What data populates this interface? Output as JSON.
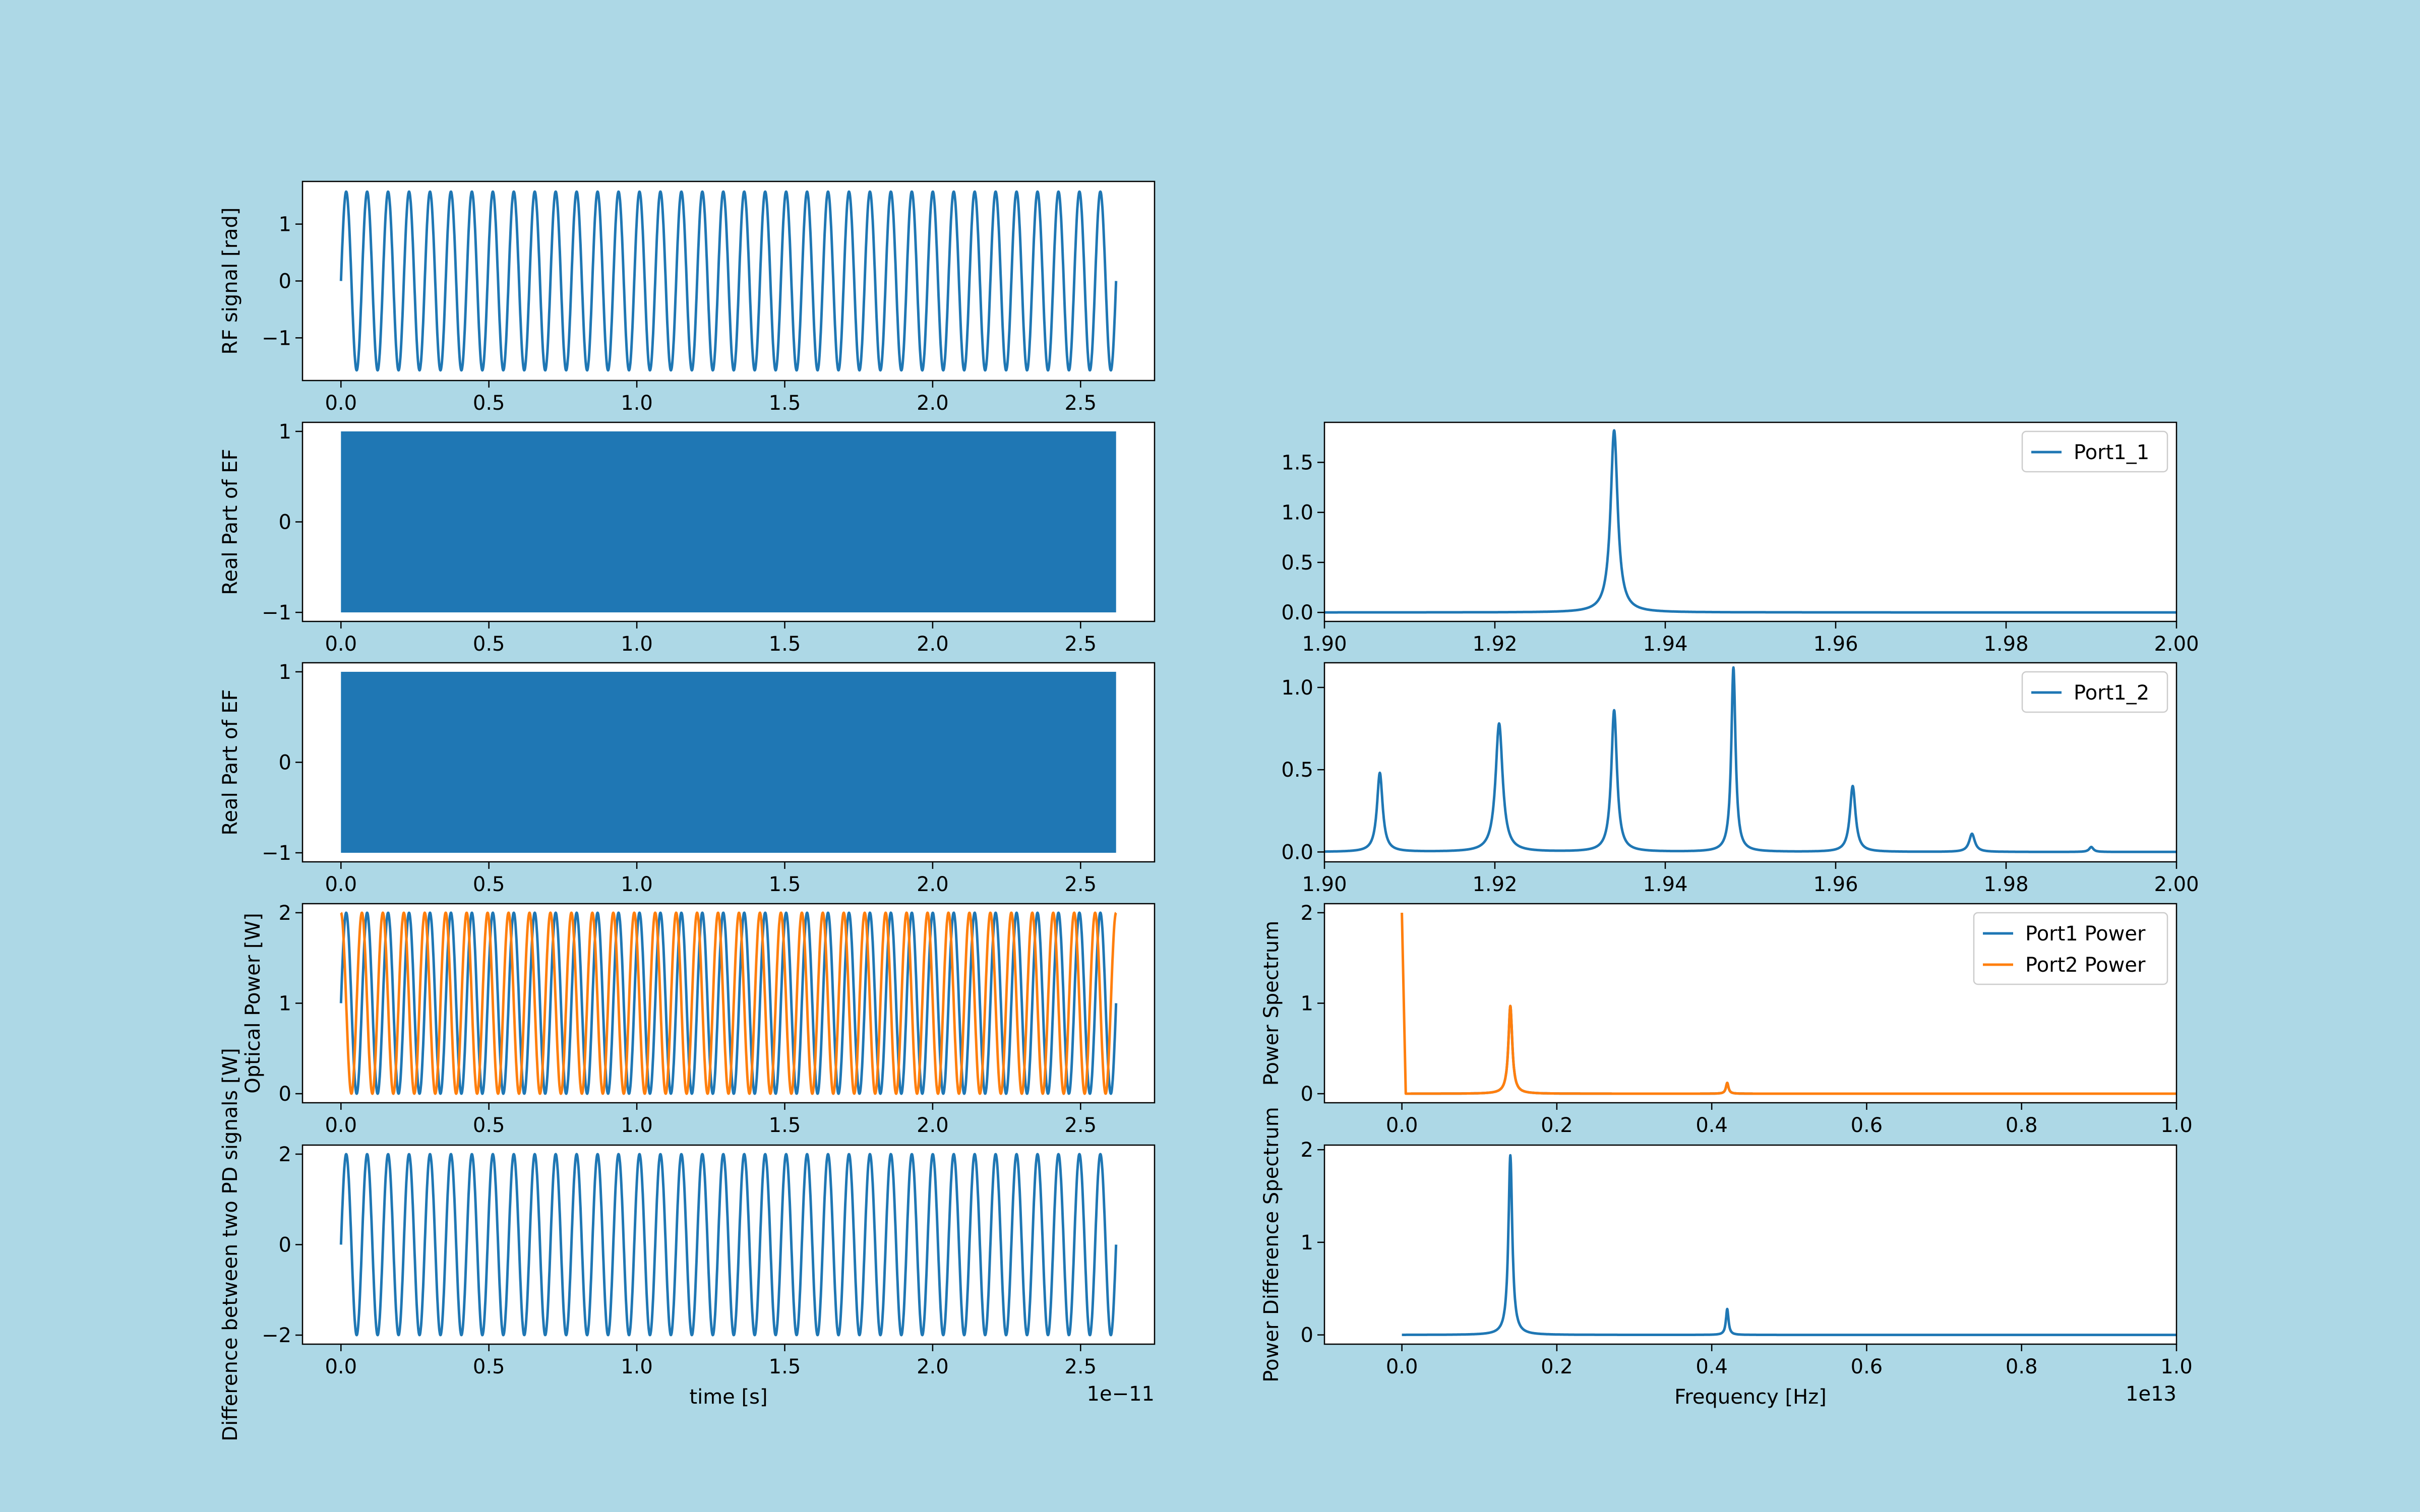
{
  "figure": {
    "background": "#add8e6"
  },
  "colors": {
    "c0": "#1f77b4",
    "c1": "#ff7f0e"
  },
  "chart_data": [
    {
      "id": "rf",
      "type": "line",
      "xlabel": "",
      "ylabel": "RF signal [rad]",
      "xlim": [
        -0.13,
        2.75
      ],
      "ylim": [
        -1.75,
        1.75
      ],
      "xticks": [
        0.0,
        0.5,
        1.0,
        1.5,
        2.0,
        2.5
      ],
      "xtick_labels": [
        "0.0",
        "0.5",
        "1.0",
        "1.5",
        "2.0",
        "2.5"
      ],
      "yticks": [
        -1,
        0,
        1
      ],
      "ytick_labels": [
        "−1",
        "0",
        "1"
      ],
      "grid": false,
      "series": [
        {
          "kind": "sine",
          "color": "#1f77b4",
          "x_end": 2.62,
          "cycles": 37,
          "amplitude": 1.571,
          "offset": 0,
          "phase": 0
        }
      ]
    },
    {
      "id": "ef1",
      "type": "area",
      "xlabel": "",
      "ylabel": "Real Part of EF",
      "xlim": [
        -0.13,
        2.75
      ],
      "ylim": [
        -1.1,
        1.1
      ],
      "xticks": [
        0.0,
        0.5,
        1.0,
        1.5,
        2.0,
        2.5
      ],
      "xtick_labels": [
        "0.0",
        "0.5",
        "1.0",
        "1.5",
        "2.0",
        "2.5"
      ],
      "yticks": [
        -1,
        0,
        1
      ],
      "ytick_labels": [
        "−1",
        "0",
        "1"
      ],
      "grid": false,
      "series": [
        {
          "kind": "band",
          "color": "#1f77b4",
          "x_start": 0,
          "x_end": 2.62,
          "y_min": -1,
          "y_max": 1
        }
      ]
    },
    {
      "id": "ef2",
      "type": "area",
      "xlabel": "",
      "ylabel": "Real Part of EF",
      "xlim": [
        -0.13,
        2.75
      ],
      "ylim": [
        -1.1,
        1.1
      ],
      "xticks": [
        0.0,
        0.5,
        1.0,
        1.5,
        2.0,
        2.5
      ],
      "xtick_labels": [
        "0.0",
        "0.5",
        "1.0",
        "1.5",
        "2.0",
        "2.5"
      ],
      "yticks": [
        -1,
        0,
        1
      ],
      "ytick_labels": [
        "−1",
        "0",
        "1"
      ],
      "grid": false,
      "series": [
        {
          "kind": "band",
          "color": "#1f77b4",
          "x_start": 0,
          "x_end": 2.62,
          "y_min": -1,
          "y_max": 1
        }
      ]
    },
    {
      "id": "power",
      "type": "line",
      "xlabel": "",
      "ylabel": "Optical Power [W]",
      "xlim": [
        -0.13,
        2.75
      ],
      "ylim": [
        -0.1,
        2.1
      ],
      "xticks": [
        0.0,
        0.5,
        1.0,
        1.5,
        2.0,
        2.5
      ],
      "xtick_labels": [
        "0.0",
        "0.5",
        "1.0",
        "1.5",
        "2.0",
        "2.5"
      ],
      "yticks": [
        0,
        1,
        2
      ],
      "ytick_labels": [
        "0",
        "1",
        "2"
      ],
      "grid": false,
      "series": [
        {
          "kind": "sine",
          "color": "#1f77b4",
          "x_end": 2.62,
          "cycles": 37,
          "amplitude": 1,
          "offset": 1,
          "phase": 0
        },
        {
          "kind": "sine",
          "color": "#ff7f0e",
          "x_end": 2.62,
          "cycles": 37,
          "amplitude": 1,
          "offset": 1,
          "phase": 1.5708
        }
      ]
    },
    {
      "id": "diff",
      "type": "line",
      "xlabel": "time [s]",
      "ylabel": "Difference between two PD signals [W]",
      "x_offset_label": "1e−11",
      "xlim": [
        -0.13,
        2.75
      ],
      "ylim": [
        -2.2,
        2.2
      ],
      "xticks": [
        0.0,
        0.5,
        1.0,
        1.5,
        2.0,
        2.5
      ],
      "xtick_labels": [
        "0.0",
        "0.5",
        "1.0",
        "1.5",
        "2.0",
        "2.5"
      ],
      "yticks": [
        -2,
        0,
        2
      ],
      "ytick_labels": [
        "−2",
        "0",
        "2"
      ],
      "grid": false,
      "series": [
        {
          "kind": "sine",
          "color": "#1f77b4",
          "x_end": 2.62,
          "cycles": 37,
          "amplitude": 2,
          "offset": 0,
          "phase": 0
        }
      ]
    },
    {
      "id": "spec1",
      "type": "line",
      "xlabel": "",
      "ylabel": "",
      "xlim": [
        1.9,
        2.0
      ],
      "ylim": [
        -0.09,
        1.9
      ],
      "xticks": [
        1.9,
        1.92,
        1.94,
        1.96,
        1.98,
        2.0
      ],
      "xtick_labels": [
        "1.90",
        "1.92",
        "1.94",
        "1.96",
        "1.98",
        "2.00"
      ],
      "yticks": [
        0.0,
        0.5,
        1.0,
        1.5
      ],
      "ytick_labels": [
        "0.0",
        "0.5",
        "1.0",
        "1.5"
      ],
      "grid": false,
      "legend": "top-right",
      "series": [
        {
          "kind": "peaks",
          "name": "Port1_1",
          "color": "#1f77b4",
          "x_start": 1.9,
          "x_end": 2.0,
          "baseline": 0.0,
          "peaks": [
            [
              1.934,
              1.82,
              0.0005
            ]
          ]
        }
      ]
    },
    {
      "id": "spec2",
      "type": "line",
      "xlabel": "",
      "ylabel": "",
      "xlim": [
        1.9,
        2.0
      ],
      "ylim": [
        -0.06,
        1.15
      ],
      "xticks": [
        1.9,
        1.92,
        1.94,
        1.96,
        1.98,
        2.0
      ],
      "xtick_labels": [
        "1.90",
        "1.92",
        "1.94",
        "1.96",
        "1.98",
        "2.00"
      ],
      "yticks": [
        0.0,
        0.5,
        1.0
      ],
      "ytick_labels": [
        "0.0",
        "0.5",
        "1.0"
      ],
      "grid": false,
      "legend": "top-right",
      "series": [
        {
          "kind": "peaks",
          "name": "Port1_2",
          "color": "#1f77b4",
          "x_start": 1.9,
          "x_end": 2.0,
          "baseline": 0.0,
          "peaks": [
            [
              1.9065,
              0.48,
              0.0004
            ],
            [
              1.9205,
              0.78,
              0.0005
            ],
            [
              1.934,
              0.86,
              0.0004
            ],
            [
              1.948,
              1.12,
              0.0003
            ],
            [
              1.962,
              0.4,
              0.0004
            ],
            [
              1.976,
              0.11,
              0.0004
            ],
            [
              1.99,
              0.03,
              0.0003
            ]
          ]
        }
      ]
    },
    {
      "id": "power-spec",
      "type": "line",
      "xlabel": "",
      "ylabel": "Power Spectrum",
      "xlim": [
        -0.1,
        1.0
      ],
      "ylim": [
        -0.1,
        2.1
      ],
      "xticks": [
        0.0,
        0.2,
        0.4,
        0.6,
        0.8,
        1.0
      ],
      "xtick_labels": [
        "0.0",
        "0.2",
        "0.4",
        "0.6",
        "0.8",
        "1.0"
      ],
      "yticks": [
        0,
        1,
        2
      ],
      "ytick_labels": [
        "0",
        "1",
        "2"
      ],
      "grid": false,
      "legend": "top-right",
      "series": [
        {
          "kind": "peaks",
          "name": "Port1 Power",
          "color": "#1f77b4",
          "x_start": 0.005,
          "x_end": 1.0,
          "baseline": 0.0,
          "peaks": [
            [
              0.14,
              0.97,
              0.003
            ],
            [
              0.42,
              0.12,
              0.002
            ]
          ]
        },
        {
          "kind": "peaks",
          "name": "Port2 Power",
          "color": "#ff7f0e",
          "x_start": 0.005,
          "x_end": 1.0,
          "baseline": 0.0,
          "start_point": [
            0.0,
            2.0
          ],
          "peaks": [
            [
              0.14,
              0.97,
              0.003
            ],
            [
              0.42,
              0.12,
              0.002
            ]
          ]
        }
      ]
    },
    {
      "id": "diff-spec",
      "type": "line",
      "xlabel": "Frequency [Hz]",
      "ylabel": "Power Difference Spectrum",
      "x_offset_label": "1e13",
      "xlim": [
        -0.1,
        1.0
      ],
      "ylim": [
        -0.1,
        2.05
      ],
      "xticks": [
        0.0,
        0.2,
        0.4,
        0.6,
        0.8,
        1.0
      ],
      "xtick_labels": [
        "0.0",
        "0.2",
        "0.4",
        "0.6",
        "0.8",
        "1.0"
      ],
      "yticks": [
        0,
        1,
        2
      ],
      "ytick_labels": [
        "0",
        "1",
        "2"
      ],
      "grid": false,
      "series": [
        {
          "kind": "peaks",
          "color": "#1f77b4",
          "x_start": 0.0,
          "x_end": 1.0,
          "baseline": 0.0,
          "peaks": [
            [
              0.14,
              1.94,
              0.003
            ],
            [
              0.42,
              0.28,
              0.002
            ]
          ]
        }
      ]
    }
  ]
}
